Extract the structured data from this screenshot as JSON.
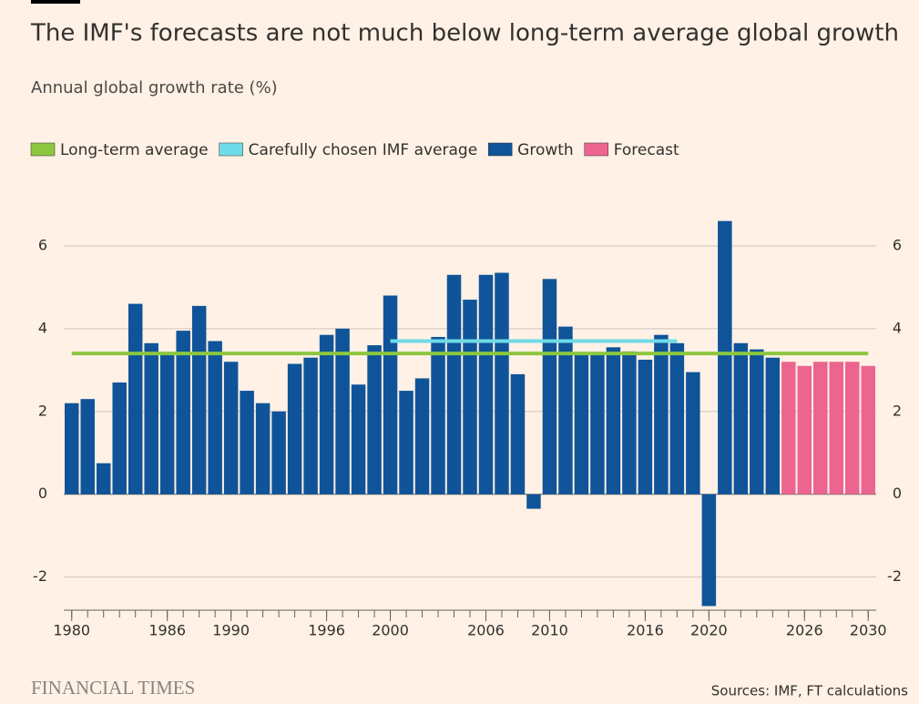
{
  "chart_data": {
    "type": "bar",
    "title": "The IMF's forecasts are not much below long-term average global growth",
    "subtitle": "Annual global growth rate (%)",
    "source": "Sources: IMF, FT calculations",
    "brand": "FINANCIAL TIMES",
    "x": [
      1980,
      1981,
      1982,
      1983,
      1984,
      1985,
      1986,
      1987,
      1988,
      1989,
      1990,
      1991,
      1992,
      1993,
      1994,
      1995,
      1996,
      1997,
      1998,
      1999,
      2000,
      2001,
      2002,
      2003,
      2004,
      2005,
      2006,
      2007,
      2008,
      2009,
      2010,
      2011,
      2012,
      2013,
      2014,
      2015,
      2016,
      2017,
      2018,
      2019,
      2020,
      2021,
      2022,
      2023,
      2024,
      2025,
      2026,
      2027,
      2028,
      2029,
      2030
    ],
    "xlim": [
      1979.5,
      2030.5
    ],
    "xticks": [
      1980,
      1986,
      1990,
      1996,
      2000,
      2006,
      2010,
      2016,
      2020,
      2026,
      2030
    ],
    "ylim": [
      -2.8,
      7
    ],
    "yticks": [
      -2,
      0,
      2,
      4,
      6
    ],
    "grid": true,
    "series": [
      {
        "name": "Long-term average",
        "type": "line",
        "color": "#8dc63f",
        "values": [
          3.4,
          3.4,
          3.4,
          3.4,
          3.4,
          3.4,
          3.4,
          3.4,
          3.4,
          3.4,
          3.4,
          3.4,
          3.4,
          3.4,
          3.4,
          3.4,
          3.4,
          3.4,
          3.4,
          3.4,
          3.4,
          3.4,
          3.4,
          3.4,
          3.4,
          3.4,
          3.4,
          3.4,
          3.4,
          3.4,
          3.4,
          3.4,
          3.4,
          3.4,
          3.4,
          3.4,
          3.4,
          3.4,
          3.4,
          3.4,
          3.4,
          3.4,
          3.4,
          3.4,
          3.4,
          3.4,
          3.4,
          3.4,
          3.4,
          3.4,
          3.4
        ]
      },
      {
        "name": "Carefully chosen IMF average",
        "type": "line",
        "color": "#6fdbe8",
        "values": [
          null,
          null,
          null,
          null,
          null,
          null,
          null,
          null,
          null,
          null,
          null,
          null,
          null,
          null,
          null,
          null,
          null,
          null,
          null,
          null,
          3.7,
          3.7,
          3.7,
          3.7,
          3.7,
          3.7,
          3.7,
          3.7,
          3.7,
          3.7,
          3.7,
          3.7,
          3.7,
          3.7,
          3.7,
          3.7,
          3.7,
          3.7,
          3.7,
          null,
          null,
          null,
          null,
          null,
          null,
          null,
          null,
          null,
          null,
          null,
          null
        ]
      },
      {
        "name": "Growth",
        "type": "bar",
        "color": "#0f5499",
        "values": [
          2.2,
          2.3,
          0.75,
          2.7,
          4.6,
          3.65,
          3.4,
          3.95,
          4.55,
          3.7,
          3.2,
          2.5,
          2.2,
          2.0,
          3.15,
          3.3,
          3.85,
          4.0,
          2.65,
          3.6,
          4.8,
          2.5,
          2.8,
          3.8,
          5.3,
          4.7,
          5.3,
          5.35,
          2.9,
          -0.35,
          5.2,
          4.05,
          3.4,
          3.4,
          3.55,
          3.45,
          3.25,
          3.85,
          3.65,
          2.95,
          -2.7,
          6.6,
          3.65,
          3.5,
          3.3,
          null,
          null,
          null,
          null,
          null,
          null
        ]
      },
      {
        "name": "Forecast",
        "type": "bar",
        "color": "#ec6590",
        "values": [
          null,
          null,
          null,
          null,
          null,
          null,
          null,
          null,
          null,
          null,
          null,
          null,
          null,
          null,
          null,
          null,
          null,
          null,
          null,
          null,
          null,
          null,
          null,
          null,
          null,
          null,
          null,
          null,
          null,
          null,
          null,
          null,
          null,
          null,
          null,
          null,
          null,
          null,
          null,
          null,
          null,
          null,
          null,
          null,
          null,
          3.2,
          3.1,
          3.2,
          3.2,
          3.2,
          3.1
        ]
      }
    ]
  }
}
